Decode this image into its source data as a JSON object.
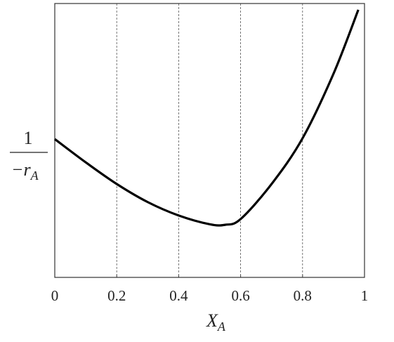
{
  "chart_data": {
    "type": "line",
    "xlabel": "X",
    "xlabel_subscript": "A",
    "ylabel_numerator": "1",
    "ylabel_denominator": "−r",
    "ylabel_subscript": "A",
    "x": [
      0,
      0.1,
      0.2,
      0.3,
      0.4,
      0.5,
      0.55,
      0.6,
      0.7,
      0.8,
      0.9,
      0.98
    ],
    "series": [
      {
        "color": "#000000",
        "values": [
          0.505,
          0.42,
          0.341,
          0.275,
          0.226,
          0.194,
          0.192,
          0.213,
          0.341,
          0.508,
          0.744,
          0.977
        ]
      }
    ],
    "xlim": [
      0,
      1
    ],
    "ylim": [
      0,
      1
    ],
    "xticks": [
      0,
      0.2,
      0.4,
      0.6,
      0.8,
      1
    ],
    "grid": true
  }
}
